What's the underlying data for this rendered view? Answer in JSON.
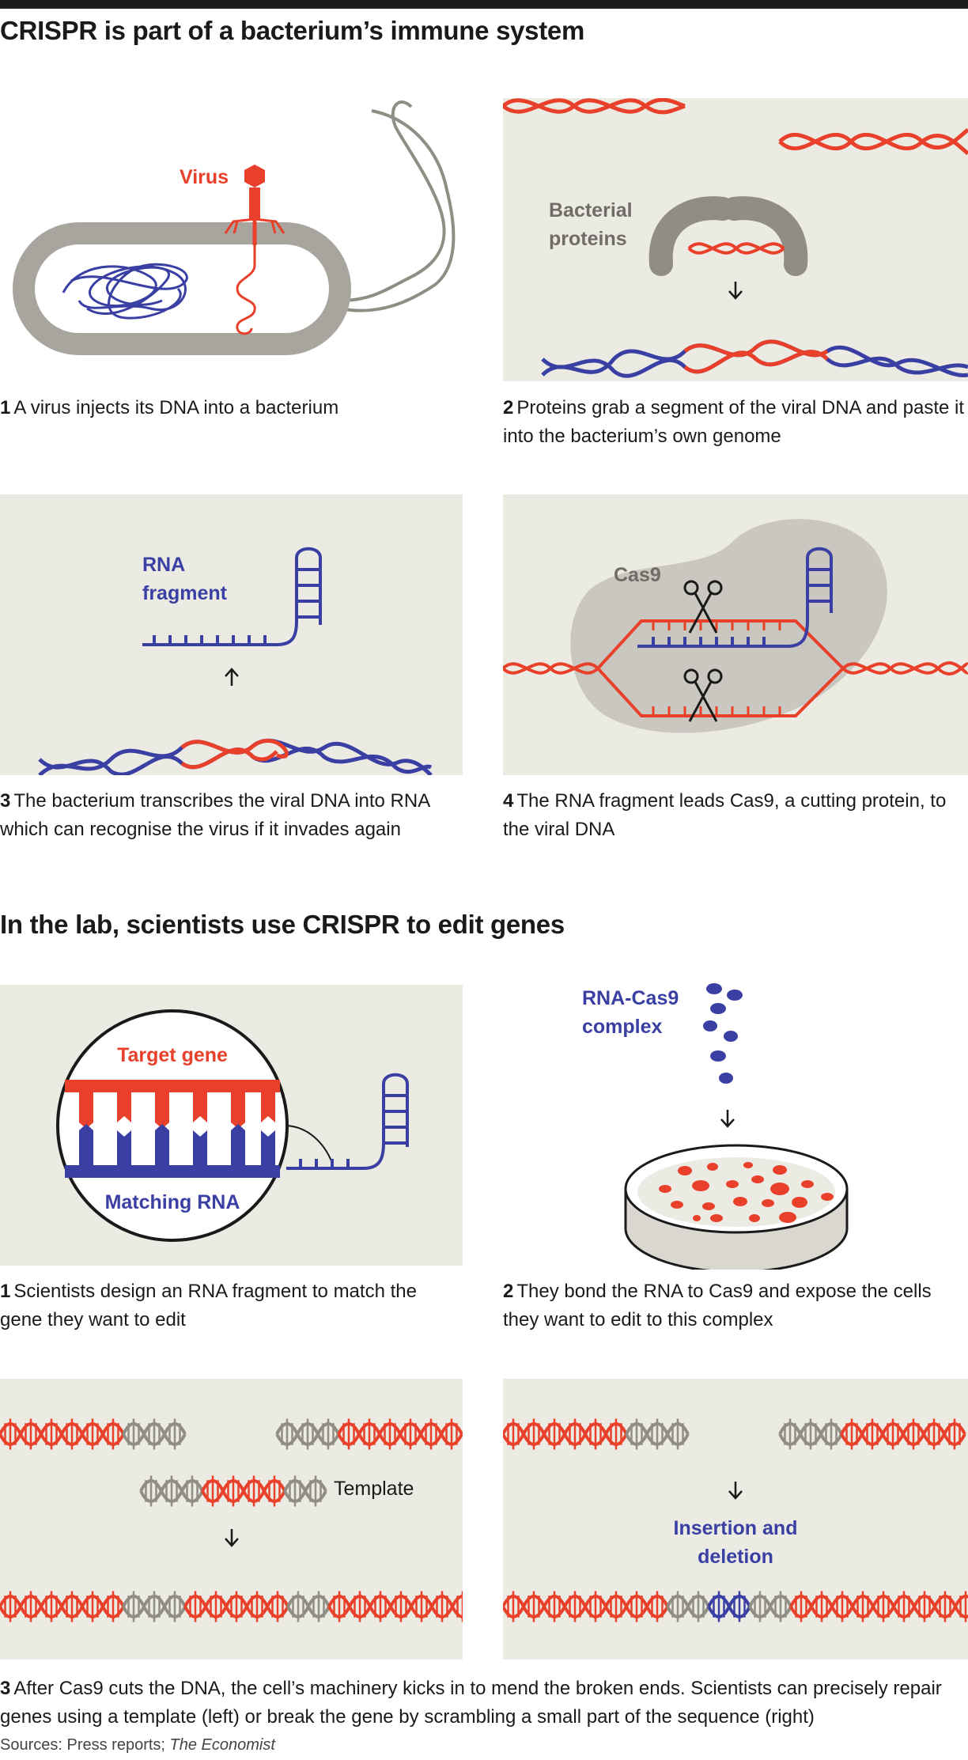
{
  "section1": {
    "title": "CRISPR is part of a bacterium’s immune system",
    "panels": [
      {
        "num": "1",
        "caption": "A virus injects its DNA into a bacterium",
        "labels": {
          "virus": "Virus"
        }
      },
      {
        "num": "2",
        "caption": "Proteins grab a segment of the viral DNA and paste it into the bacterium’s own genome",
        "labels": {
          "proteins_line1": "Bacterial",
          "proteins_line2": "proteins"
        }
      },
      {
        "num": "3",
        "caption": "The bacterium transcribes the viral DNA into RNA which can recognise the virus if it invades again",
        "labels": {
          "rna_line1": "RNA",
          "rna_line2": "fragment"
        }
      },
      {
        "num": "4",
        "caption": "The RNA fragment leads Cas9, a cutting protein, to the viral DNA",
        "labels": {
          "cas9": "Cas9"
        }
      }
    ]
  },
  "section2": {
    "title": "In the lab, scientists use CRISPR to edit genes",
    "panels": [
      {
        "num": "1",
        "caption": "Scientists design an RNA fragment to match the gene they want to edit",
        "labels": {
          "target": "Target gene",
          "matching": "Matching RNA"
        }
      },
      {
        "num": "2",
        "caption": "They bond the RNA to Cas9 and expose the cells they want to edit to this complex",
        "labels": {
          "complex_line1": "RNA-Cas9",
          "complex_line2": "complex"
        }
      },
      {
        "num": "3",
        "caption": "After Cas9 cuts the DNA, the cell’s machinery kicks in to mend the broken ends. Scientists can precisely repair genes using a template (left) or break the gene by scrambling a small part of the sequence (right)",
        "labels": {
          "template": "Template",
          "insertion_line1": "Insertion and",
          "insertion_line2": "deletion"
        }
      }
    ]
  },
  "source": {
    "prefix": "Sources: Press reports; ",
    "publication": "The Economist"
  },
  "colors": {
    "red": "#e8402a",
    "blue": "#3a3fa3",
    "grey": "#8f8d84",
    "light_grey": "#b7b5ad",
    "panel_bg": "#ebeae3",
    "text": "#1a1a1a"
  }
}
